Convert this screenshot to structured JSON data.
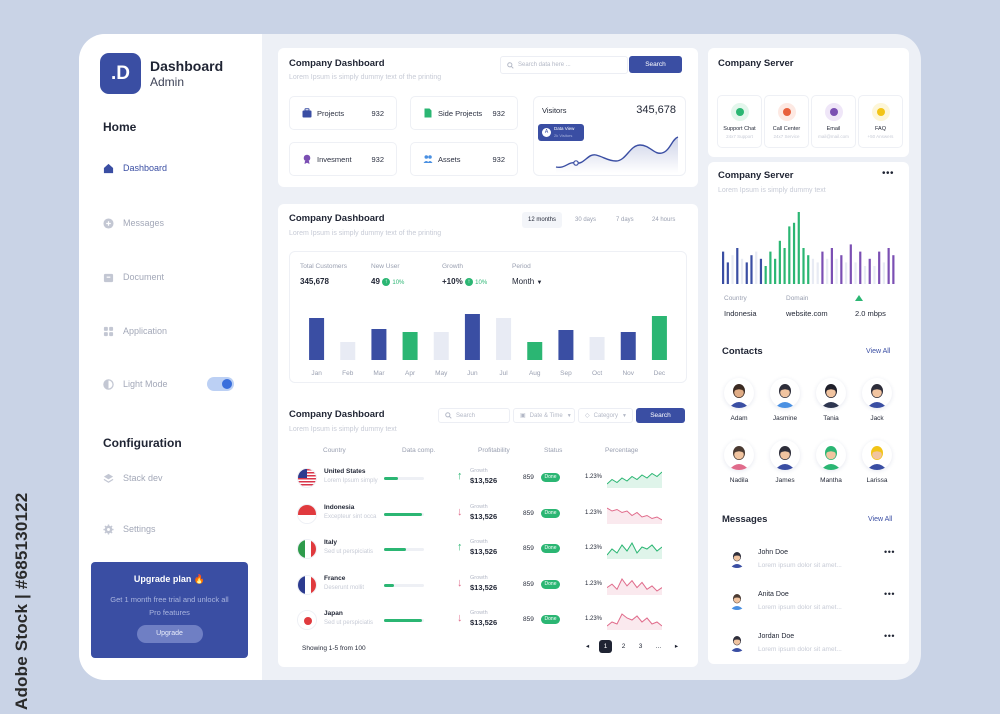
{
  "watermark": {
    "stock_id": "Adobe Stock | #685130122"
  },
  "sidebar": {
    "logo_letter": ".D",
    "brand_title": "Dashboard",
    "brand_sub": "Admin",
    "home_title": "Home",
    "items": [
      {
        "label": "Dashboard",
        "icon": "home-icon",
        "active": true
      },
      {
        "label": "Messages",
        "icon": "plus-circle-icon"
      },
      {
        "label": "Document",
        "icon": "archive-icon"
      },
      {
        "label": "Application",
        "icon": "grid-icon"
      },
      {
        "label": "Light Mode",
        "icon": "half-circle-icon"
      }
    ],
    "config_title": "Configuration",
    "config_items": [
      {
        "label": "Stack dev",
        "icon": "layers-icon"
      },
      {
        "label": "Settings",
        "icon": "gear-icon"
      }
    ],
    "light_mode_on": true,
    "upgrade": {
      "title": "Upgrade plan 🔥",
      "desc": "Get 1 month free trial and unlock all Pro features",
      "button": "Upgrade"
    }
  },
  "top_card": {
    "title": "Company Dashboard",
    "subtitle": "Lorem Ipsum is simply dummy text of the printing",
    "search_placeholder": "Search data here ...",
    "search_button": "Search",
    "stats": [
      {
        "label": "Projects",
        "value": "932",
        "icon": "briefcase-icon",
        "color": "#3a4ea3"
      },
      {
        "label": "Side Projects",
        "value": "932",
        "icon": "document-icon",
        "color": "#2bb673"
      },
      {
        "label": "Invesment",
        "value": "932",
        "icon": "medal-icon",
        "color": "#7b4fb3"
      },
      {
        "label": "Assets",
        "value": "932",
        "icon": "people-icon",
        "color": "#4a90e2"
      }
    ],
    "visitors": {
      "label": "Visitors",
      "value": "345,678",
      "tooltip_title": "Data View",
      "tooltip_sub": "2k Visitors"
    }
  },
  "chart_card": {
    "title": "Company Dashboard",
    "subtitle": "Lorem Ipsum is simply dummy text of the printing",
    "ranges": [
      "12 months",
      "30 days",
      "7 days",
      "24 hours"
    ],
    "active_range": "12 months",
    "metrics": [
      {
        "label": "Total Customers",
        "value": "345,678"
      },
      {
        "label": "New User",
        "value": "49",
        "badge": "10%"
      },
      {
        "label": "Growth",
        "value": "+10%",
        "badge": "10%"
      },
      {
        "label": "Period",
        "value": "Month"
      }
    ]
  },
  "chart_data": {
    "type": "bar",
    "categories": [
      "Jan",
      "Feb",
      "Mar",
      "Apr",
      "May",
      "Jun",
      "Jul",
      "Aug",
      "Sep",
      "Oct",
      "Nov",
      "Dec"
    ],
    "values": [
      42,
      18,
      31,
      28,
      28,
      46,
      42,
      18,
      30,
      23,
      28,
      44
    ],
    "bar_colors": [
      "#3a4ea3",
      "#e8ebf4",
      "#3a4ea3",
      "#2bb673",
      "#e8ebf4",
      "#3a4ea3",
      "#e8ebf4",
      "#2bb673",
      "#3a4ea3",
      "#e8ebf4",
      "#3a4ea3",
      "#2bb673"
    ],
    "ylim": [
      0,
      50
    ],
    "grid": false,
    "title": "",
    "xlabel": "",
    "ylabel": ""
  },
  "table_card": {
    "title": "Company Dashboard",
    "subtitle": "Lorem Ipsum is simply dummy text",
    "search_placeholder": "Search",
    "date_filter": "Date & Time",
    "category_filter": "Category",
    "search_button": "Search",
    "columns": [
      "Country",
      "Data comp.",
      "Profitability",
      "Status",
      "Percentage"
    ],
    "rows": [
      {
        "country": "United States",
        "sub": "Lorem Ipsum simply",
        "flag": "us",
        "progress": 0.35,
        "direction": "up",
        "growth_label": "Growth",
        "growth": "$13,526",
        "status_num": "859",
        "status": "Done",
        "percent": "1.23%",
        "spark": [
          6,
          9,
          7,
          10,
          8,
          11,
          9,
          12,
          10,
          13,
          11,
          14
        ],
        "spark_color": "#2bb673"
      },
      {
        "country": "Indonesia",
        "sub": "Excepteur sint occa",
        "flag": "id",
        "progress": 0.95,
        "direction": "down",
        "growth_label": "Growth",
        "growth": "$13,526",
        "status_num": "859",
        "status": "Done",
        "percent": "1.23%",
        "spark": [
          14,
          12,
          13,
          11,
          12,
          9,
          11,
          8,
          9,
          7,
          8,
          6
        ],
        "spark_color": "#e06b8b"
      },
      {
        "country": "Italy",
        "sub": "Sed ut perspiciatis",
        "flag": "it",
        "progress": 0.55,
        "direction": "up",
        "growth_label": "Growth",
        "growth": "$13,526",
        "status_num": "859",
        "status": "Done",
        "percent": "1.23%",
        "spark": [
          7,
          10,
          8,
          12,
          9,
          13,
          8,
          11,
          10,
          12,
          9,
          11
        ],
        "spark_color": "#2bb673"
      },
      {
        "country": "France",
        "sub": "Deserunt mollit",
        "flag": "fr",
        "progress": 0.25,
        "direction": "down",
        "growth_label": "Growth",
        "growth": "$13,526",
        "status_num": "859",
        "status": "Done",
        "percent": "1.23%",
        "spark": [
          8,
          10,
          7,
          13,
          9,
          12,
          8,
          11,
          7,
          9,
          6,
          8
        ],
        "spark_color": "#e06b8b"
      },
      {
        "country": "Japan",
        "sub": "Sed ut perspiciatis",
        "flag": "jp",
        "progress": 0.95,
        "direction": "down",
        "growth_label": "Growth",
        "growth": "$13,526",
        "status_num": "859",
        "status": "Done",
        "percent": "1.23%",
        "spark": [
          7,
          9,
          8,
          13,
          11,
          10,
          12,
          9,
          11,
          8,
          9,
          7
        ],
        "spark_color": "#e06b8b"
      }
    ],
    "footer": "Showing 1-5 from 100",
    "pages": [
      "1",
      "2",
      "3",
      "..."
    ],
    "current_page": "1"
  },
  "right": {
    "server_title": "Company Server",
    "services": [
      {
        "name": "Support Chat",
        "sub": "24x7 Support",
        "color": "#2bb673",
        "bg": "#e3f6ec",
        "icon": "chat-icon"
      },
      {
        "name": "Call Center",
        "sub": "24x7 Service",
        "color": "#e8603c",
        "bg": "#fde9e3",
        "icon": "phone-icon"
      },
      {
        "name": "Email",
        "sub": "mail@mail.com",
        "color": "#7b4fb3",
        "bg": "#efe6f8",
        "icon": "mail-icon"
      },
      {
        "name": "FAQ",
        "sub": "+50 Answers",
        "color": "#f2c417",
        "bg": "#fdf6d8",
        "icon": "question-icon"
      }
    ],
    "server2": {
      "title": "Company Server",
      "subtitle": "Lorem Ipsum is simply dummy text",
      "country_label": "Country",
      "country": "Indonesia",
      "domain_label": "Domain",
      "domain": "website.com",
      "speed": "2.0 mbps",
      "bars": [
        {
          "v": 0.45,
          "c": "#3a4ea3"
        },
        {
          "v": 0.3,
          "c": "#3a4ea3"
        },
        {
          "v": 0.4,
          "c": "#e8ebf4"
        },
        {
          "v": 0.5,
          "c": "#3a4ea3"
        },
        {
          "v": 0.35,
          "c": "#e8ebf4"
        },
        {
          "v": 0.3,
          "c": "#3a4ea3"
        },
        {
          "v": 0.4,
          "c": "#3a4ea3"
        },
        {
          "v": 0.45,
          "c": "#e8ebf4"
        },
        {
          "v": 0.35,
          "c": "#3a4ea3"
        },
        {
          "v": 0.25,
          "c": "#2bb673"
        },
        {
          "v": 0.45,
          "c": "#2bb673"
        },
        {
          "v": 0.35,
          "c": "#2bb673"
        },
        {
          "v": 0.6,
          "c": "#2bb673"
        },
        {
          "v": 0.5,
          "c": "#2bb673"
        },
        {
          "v": 0.8,
          "c": "#2bb673"
        },
        {
          "v": 0.85,
          "c": "#2bb673"
        },
        {
          "v": 1.0,
          "c": "#2bb673"
        },
        {
          "v": 0.5,
          "c": "#2bb673"
        },
        {
          "v": 0.4,
          "c": "#2bb673"
        },
        {
          "v": 0.35,
          "c": "#e8ebf4"
        },
        {
          "v": 0.3,
          "c": "#e8ebf4"
        },
        {
          "v": 0.45,
          "c": "#7b4fb3"
        },
        {
          "v": 0.35,
          "c": "#e8ebf4"
        },
        {
          "v": 0.5,
          "c": "#7b4fb3"
        },
        {
          "v": 0.35,
          "c": "#e8ebf4"
        },
        {
          "v": 0.4,
          "c": "#7b4fb3"
        },
        {
          "v": 0.3,
          "c": "#e8ebf4"
        },
        {
          "v": 0.55,
          "c": "#7b4fb3"
        },
        {
          "v": 0.3,
          "c": "#e8ebf4"
        },
        {
          "v": 0.45,
          "c": "#7b4fb3"
        },
        {
          "v": 0.25,
          "c": "#e8ebf4"
        },
        {
          "v": 0.35,
          "c": "#7b4fb3"
        },
        {
          "v": 0.25,
          "c": "#e8ebf4"
        },
        {
          "v": 0.45,
          "c": "#7b4fb3"
        },
        {
          "v": 0.3,
          "c": "#e8ebf4"
        },
        {
          "v": 0.5,
          "c": "#7b4fb3"
        },
        {
          "v": 0.4,
          "c": "#7b4fb3"
        }
      ]
    },
    "contacts_title": "Contacts",
    "contacts_view_all": "View All",
    "contacts": [
      {
        "name": "Adam",
        "skin": "#e0ac85",
        "hair": "#3a2a22",
        "shirt": "#3a4ea3"
      },
      {
        "name": "Jasmine",
        "skin": "#f1c4a0",
        "hair": "#2d2d3a",
        "shirt": "#4a90e2"
      },
      {
        "name": "Tania",
        "skin": "#f1c4a0",
        "hair": "#1f1f2a",
        "shirt": "#2d3550"
      },
      {
        "name": "Jack",
        "skin": "#f1c4a0",
        "hair": "#2d2d3a",
        "shirt": "#3a4ea3"
      },
      {
        "name": "Nadila",
        "skin": "#f1c4a0",
        "hair": "#4a3a32",
        "shirt": "#e06b8b"
      },
      {
        "name": "James",
        "skin": "#f1c4a0",
        "hair": "#2d2d3a",
        "shirt": "#3a4ea3"
      },
      {
        "name": "Mantha",
        "skin": "#f1c4a0",
        "hair": "#2bb673",
        "shirt": "#2bb673"
      },
      {
        "name": "Larissa",
        "skin": "#f1c4a0",
        "hair": "#f2c417",
        "shirt": "#3a4ea3"
      }
    ],
    "messages_title": "Messages",
    "messages_view_all": "View All",
    "messages": [
      {
        "name": "John Doe",
        "text": "Lorem ipsum dolor sit amet...",
        "skin": "#f1c4a0",
        "hair": "#2d2d3a",
        "shirt": "#3a4ea3"
      },
      {
        "name": "Anita Doe",
        "text": "Lorem ipsum dolor sit amet...",
        "skin": "#f1c4a0",
        "hair": "#4a3a32",
        "shirt": "#4a90e2"
      },
      {
        "name": "Jordan Doe",
        "text": "Lorem ipsum dolor sit amet...",
        "skin": "#f1c4a0",
        "hair": "#2d2d3a",
        "shirt": "#3a4ea3"
      }
    ]
  }
}
